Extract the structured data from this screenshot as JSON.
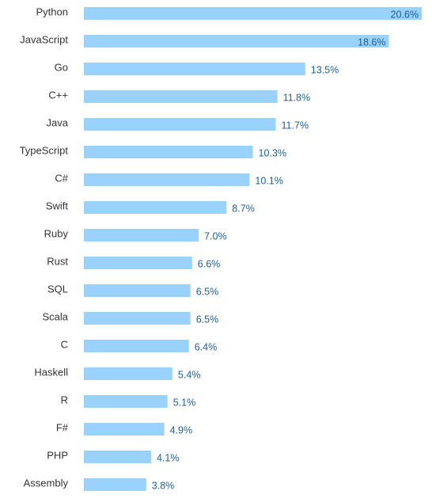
{
  "chart_data": {
    "type": "bar",
    "orientation": "horizontal",
    "categories": [
      "Python",
      "JavaScript",
      "Go",
      "C++",
      "Java",
      "TypeScript",
      "C#",
      "Swift",
      "Ruby",
      "Rust",
      "SQL",
      "Scala",
      "C",
      "Haskell",
      "R",
      "F#",
      "PHP",
      "Assembly"
    ],
    "values": [
      20.6,
      18.6,
      13.5,
      11.8,
      11.7,
      10.3,
      10.1,
      8.7,
      7.0,
      6.6,
      6.5,
      6.5,
      6.4,
      5.4,
      5.1,
      4.9,
      4.1,
      3.8
    ],
    "value_labels": [
      "20.6%",
      "18.6%",
      "13.5%",
      "11.8%",
      "11.7%",
      "10.3%",
      "10.1%",
      "8.7%",
      "7.0%",
      "6.6%",
      "6.5%",
      "6.5%",
      "6.4%",
      "5.4%",
      "5.1%",
      "4.9%",
      "4.1%",
      "3.8%"
    ],
    "title": "",
    "xlabel": "",
    "ylabel": "",
    "xlim": [
      0,
      20.6
    ],
    "grid": false,
    "legend": "none",
    "colors": {
      "bar": "#99d3fd",
      "value_label": "#1f5f95",
      "category_label": "#333333"
    }
  }
}
